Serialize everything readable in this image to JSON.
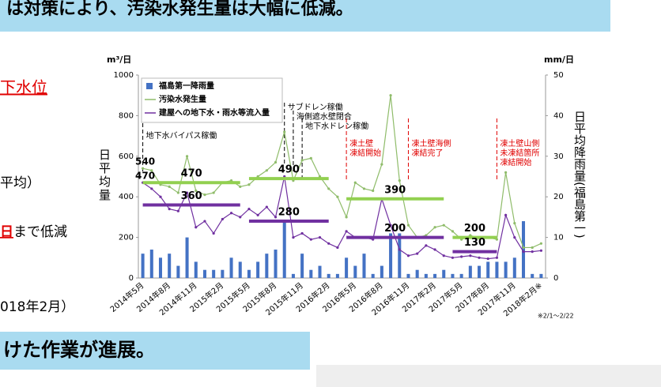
{
  "header": {
    "title": "は対策により、汚染水発生量は大幅に低減。"
  },
  "side_texts": {
    "t1": "下水位",
    "t2": "平均）",
    "t3a": "日",
    "t3b": "まで低減",
    "t4": "018年2月）"
  },
  "footer": {
    "title": "けた作業が進展。"
  },
  "chart_data": {
    "type": "bar-line",
    "y_unit": "m³/日",
    "y2_unit": "mm/日",
    "ylabel": "日平均量",
    "y2label": "日平均降雨量(福島第一)",
    "note": "※2/1～2/22",
    "categories": [
      "2014年5月",
      null,
      null,
      "2014年8月",
      null,
      null,
      "2014年11月",
      null,
      null,
      "2015年2月",
      null,
      null,
      "2015年5月",
      null,
      null,
      "2015年8月",
      null,
      null,
      "2015年11月",
      null,
      null,
      "2016年2月",
      null,
      null,
      "2016年5月",
      null,
      null,
      "2016年8月",
      null,
      null,
      "2016年11月",
      null,
      null,
      "2017年2月",
      null,
      null,
      "2017年5月",
      null,
      null,
      "2017年8月",
      null,
      null,
      "2017年11月",
      null,
      null,
      "2018年2月※"
    ],
    "ylim": [
      0,
      1000
    ],
    "yticks": [
      0,
      200,
      400,
      600,
      800,
      1000
    ],
    "y2lim": [
      0,
      50
    ],
    "y2ticks": [
      0,
      10,
      20,
      30,
      40,
      50
    ],
    "series": [
      {
        "name": "福島第一降雨量",
        "type": "bar",
        "axis": "y2",
        "color": "#4472c4",
        "values": [
          6,
          7,
          5,
          6,
          3,
          10,
          4,
          2,
          2,
          2,
          5,
          4,
          2,
          4,
          6,
          7,
          14,
          1,
          6,
          2,
          3,
          1,
          1,
          5,
          3,
          6,
          1,
          3,
          11,
          11,
          1,
          2,
          1,
          1,
          2,
          1,
          1,
          3,
          3,
          4,
          4,
          4,
          5,
          14,
          1,
          1
        ]
      },
      {
        "name": "汚染水発生量",
        "type": "line",
        "color": "#8fbc6a",
        "values": [
          540,
          530,
          460,
          450,
          420,
          600,
          430,
          410,
          420,
          470,
          480,
          450,
          460,
          500,
          530,
          570,
          720,
          480,
          580,
          590,
          500,
          440,
          400,
          300,
          470,
          440,
          430,
          560,
          900,
          480,
          260,
          200,
          210,
          250,
          260,
          230,
          190,
          210,
          195,
          200,
          190,
          520,
          270,
          150,
          150,
          170
        ]
      },
      {
        "name": "建屋への地下水・雨水等流入量",
        "type": "line",
        "color": "#7030a0",
        "values": [
          470,
          440,
          400,
          340,
          330,
          420,
          250,
          280,
          220,
          290,
          320,
          300,
          340,
          310,
          350,
          300,
          500,
          200,
          220,
          190,
          200,
          170,
          150,
          230,
          200,
          200,
          190,
          390,
          260,
          140,
          110,
          120,
          160,
          140,
          110,
          100,
          105,
          110,
          100,
          95,
          100,
          310,
          200,
          130,
          130,
          135
        ]
      }
    ],
    "reference_lines": [
      {
        "color": "#92d050",
        "start": 0,
        "end": 11,
        "value": 470
      },
      {
        "color": "#92d050",
        "start": 12,
        "end": 21,
        "value": 490
      },
      {
        "color": "#92d050",
        "start": 23,
        "end": 34,
        "value": 390
      },
      {
        "color": "#92d050",
        "start": 35,
        "end": 40,
        "value": 200
      },
      {
        "color": "#7030a0",
        "start": 0,
        "end": 11,
        "value": 360
      },
      {
        "color": "#7030a0",
        "start": 12,
        "end": 21,
        "value": 280
      },
      {
        "color": "#7030a0",
        "start": 23,
        "end": 34,
        "value": 200
      },
      {
        "color": "#7030a0",
        "start": 35,
        "end": 40,
        "value": 130
      }
    ],
    "annotations": [
      {
        "at": 0,
        "color": "#000000",
        "lines": [
          "地下水バイパス稼働"
        ]
      },
      {
        "at": 16,
        "color": "#000000",
        "lines": [
          "サブドレン稼働"
        ]
      },
      {
        "at": 17,
        "color": "#000000",
        "lines": [
          "海側遮水壁閉合"
        ]
      },
      {
        "at": 18,
        "color": "#000000",
        "lines": [
          "地下水ドレン稼働"
        ]
      },
      {
        "at": 23,
        "color": "#e00000",
        "lines": [
          "凍土壁",
          "凍結開始"
        ]
      },
      {
        "at": 30,
        "color": "#e00000",
        "lines": [
          "凍土壁海側",
          "凍結完了"
        ]
      },
      {
        "at": 40,
        "color": "#e00000",
        "lines": [
          "凍土壁山側",
          "未凍結箇所",
          "凍結開始"
        ]
      }
    ],
    "legend": "upper left"
  }
}
